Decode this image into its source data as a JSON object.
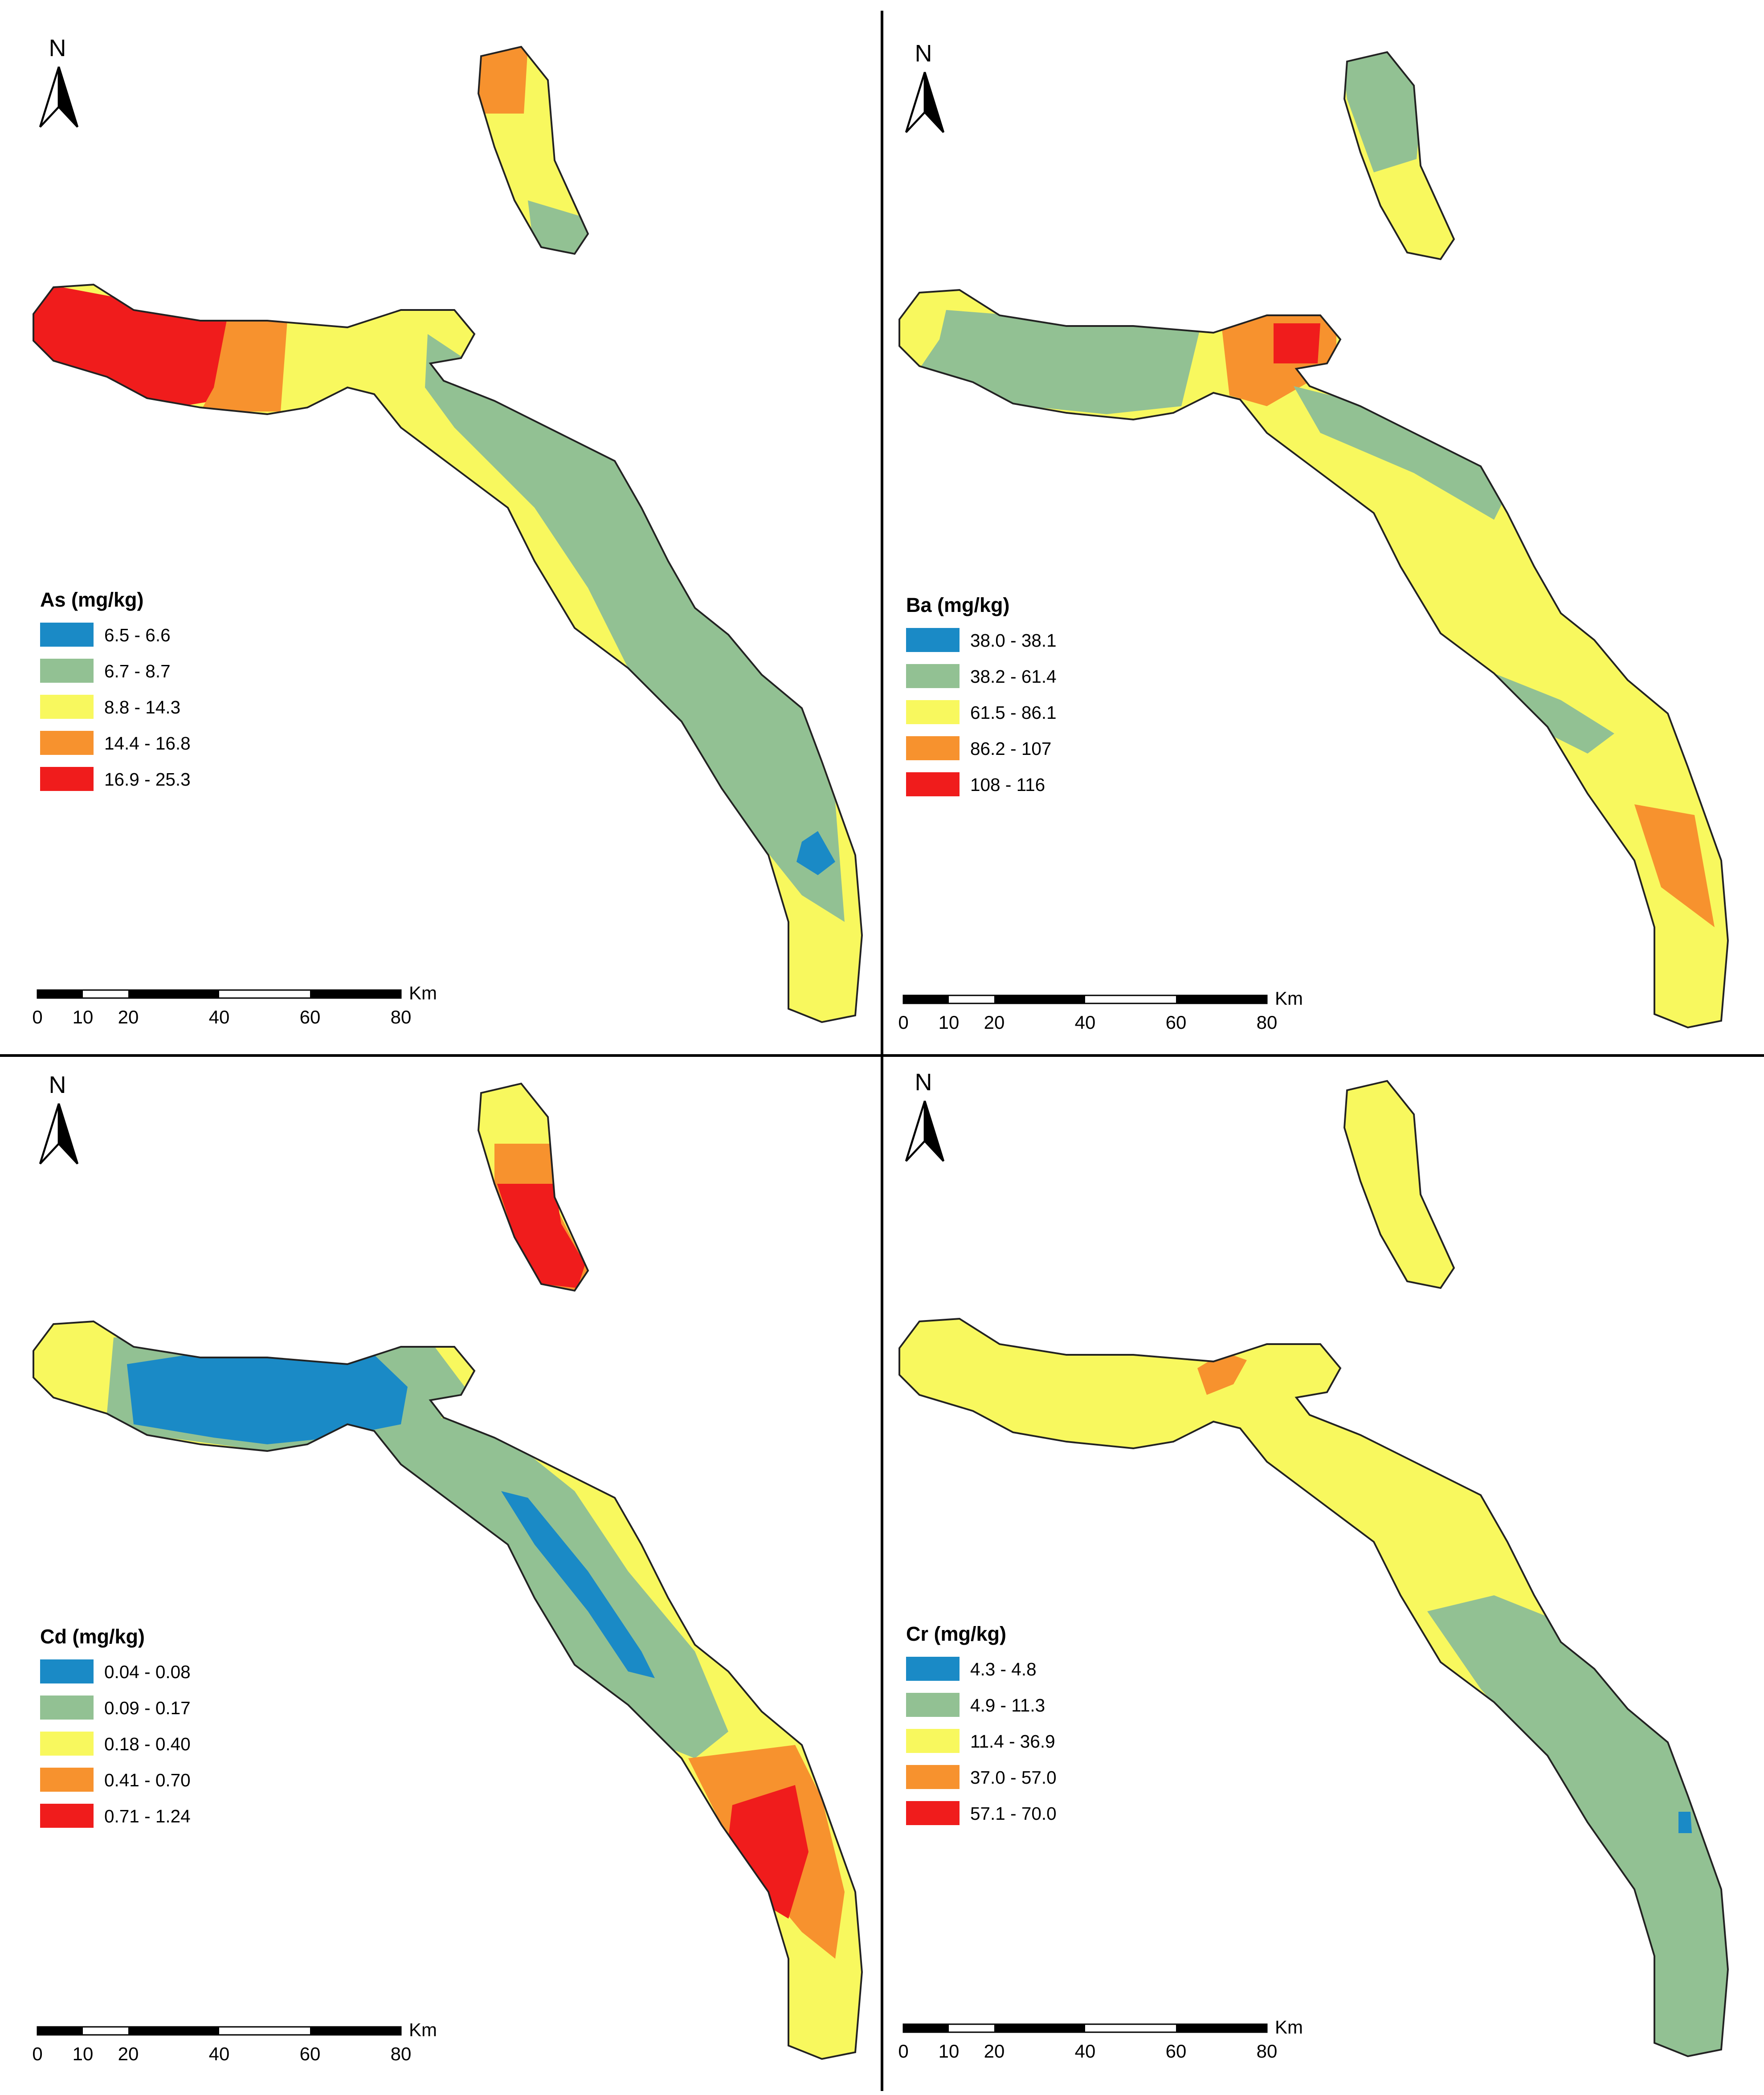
{
  "panels": [
    {
      "element": "As",
      "north": "N",
      "legend": {
        "title": "As (mg/kg)",
        "items": [
          {
            "label": "6.5 - 6.6",
            "color": "#1a8ac6"
          },
          {
            "label": "6.7 - 8.7",
            "color": "#92c193"
          },
          {
            "label": "8.8 - 14.3",
            "color": "#f8f85e"
          },
          {
            "label": "14.4 - 16.8",
            "color": "#f7922e"
          },
          {
            "label": "16.9 - 25.3",
            "color": "#f01c1c"
          }
        ]
      },
      "scale": {
        "ticks": [
          0,
          10,
          20,
          40,
          60,
          80
        ],
        "unit": "Km"
      }
    },
    {
      "element": "Ba",
      "north": "N",
      "legend": {
        "title": "Ba (mg/kg)",
        "items": [
          {
            "label": "38.0 - 38.1",
            "color": "#1a8ac6"
          },
          {
            "label": "38.2 - 61.4",
            "color": "#92c193"
          },
          {
            "label": "61.5 - 86.1",
            "color": "#f8f85e"
          },
          {
            "label": "86.2 - 107",
            "color": "#f7922e"
          },
          {
            "label": "108 - 116",
            "color": "#f01c1c"
          }
        ]
      },
      "scale": {
        "ticks": [
          0,
          10,
          20,
          40,
          60,
          80
        ],
        "unit": "Km"
      }
    },
    {
      "element": "Cd",
      "north": "N",
      "legend": {
        "title": "Cd (mg/kg)",
        "items": [
          {
            "label": "0.04 - 0.08",
            "color": "#1a8ac6"
          },
          {
            "label": "0.09 - 0.17",
            "color": "#92c193"
          },
          {
            "label": "0.18 - 0.40",
            "color": "#f8f85e"
          },
          {
            "label": "0.41 - 0.70",
            "color": "#f7922e"
          },
          {
            "label": "0.71 - 1.24",
            "color": "#f01c1c"
          }
        ]
      },
      "scale": {
        "ticks": [
          0,
          10,
          20,
          40,
          60,
          80
        ],
        "unit": "Km"
      }
    },
    {
      "element": "Cr",
      "north": "N",
      "legend": {
        "title": "Cr (mg/kg)",
        "items": [
          {
            "label": "4.3 - 4.8",
            "color": "#1a8ac6"
          },
          {
            "label": "4.9 - 11.3",
            "color": "#92c193"
          },
          {
            "label": "11.4 - 36.9",
            "color": "#f8f85e"
          },
          {
            "label": "37.0 - 57.0",
            "color": "#f7922e"
          },
          {
            "label": "57.1 - 70.0",
            "color": "#f01c1c"
          }
        ]
      },
      "scale": {
        "ticks": [
          0,
          10,
          20,
          40,
          60,
          80
        ],
        "unit": "Km"
      }
    }
  ]
}
